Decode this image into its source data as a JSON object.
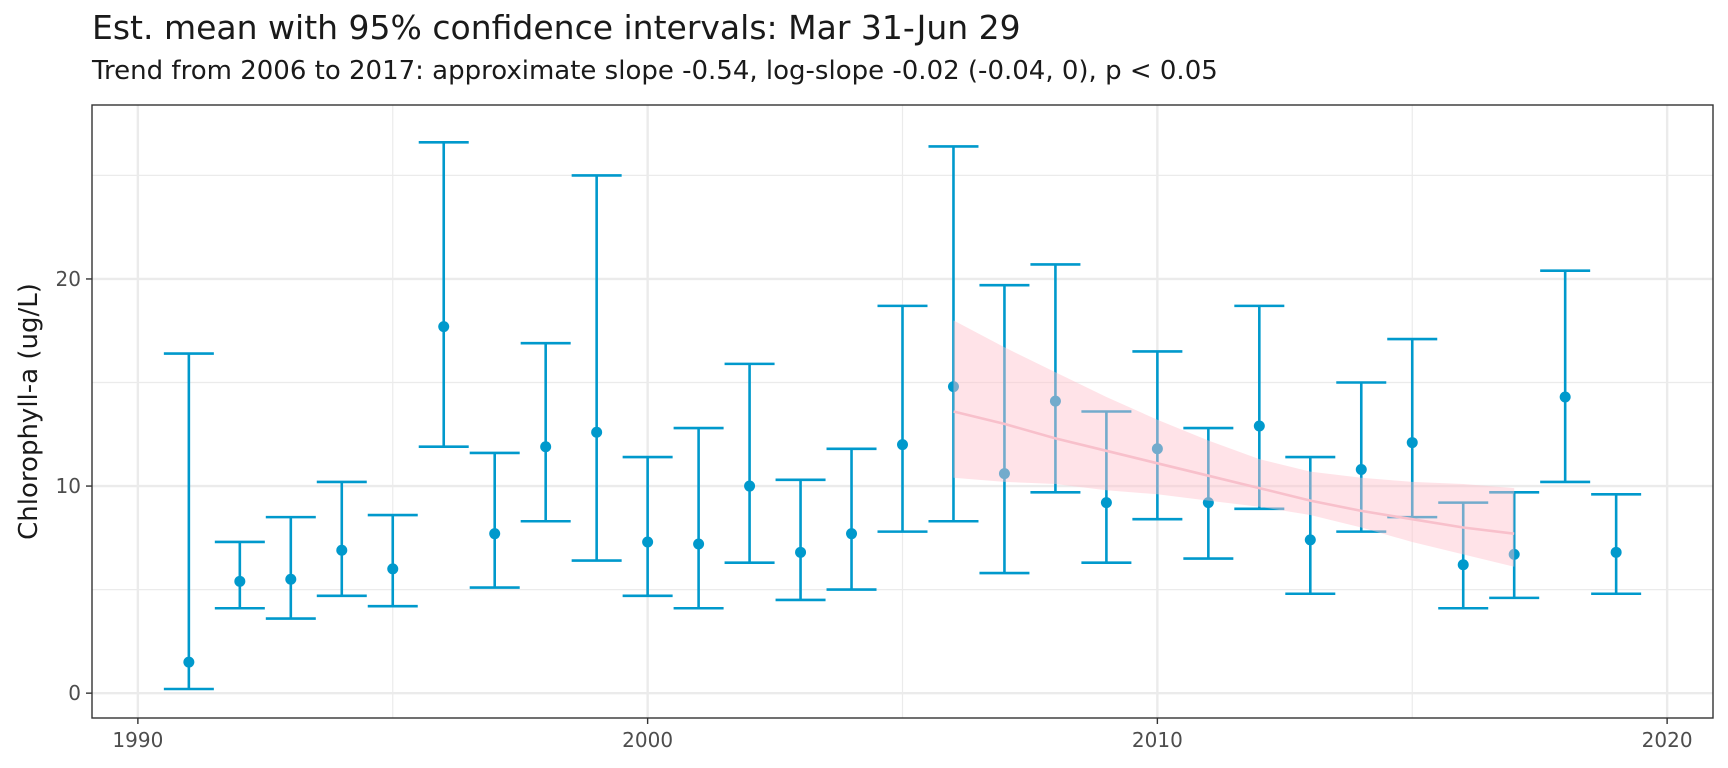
{
  "chart_data": {
    "type": "errorbar",
    "title": "Est. mean with 95% confidence intervals: Mar 31-Jun 29",
    "subtitle": "Trend from 2006 to 2017: approximate slope -0.54, log-slope -0.02 (-0.04, 0), p < 0.05",
    "xlabel": "",
    "ylabel": "Chlorophyll-a (ug/L)",
    "xlim": [
      1989.1,
      2020.9
    ],
    "ylim": [
      -1.2,
      28.4
    ],
    "x_ticks": [
      1990,
      2000,
      2010,
      2020
    ],
    "y_ticks": [
      0,
      10,
      20
    ],
    "grid": true,
    "legend": "none",
    "colors": {
      "points": "#0099CC",
      "trend_line": "#F8C0CB",
      "trend_band": "#FFDDE3",
      "grid": "#EBEBEB"
    },
    "series": [
      {
        "x": [
          1991,
          1992,
          1993,
          1994,
          1995,
          1996,
          1997,
          1998,
          1999,
          2000,
          2001,
          2002,
          2003,
          2004,
          2005,
          2006,
          2007,
          2008,
          2009,
          2010,
          2011,
          2012,
          2013,
          2014,
          2015,
          2016,
          2017,
          2018,
          2019
        ],
        "mean": [
          1.5,
          5.4,
          5.5,
          6.9,
          6.0,
          17.7,
          7.7,
          11.9,
          12.6,
          7.3,
          7.2,
          10.0,
          6.8,
          7.7,
          12.0,
          14.8,
          10.6,
          14.1,
          9.2,
          11.8,
          9.2,
          12.9,
          7.4,
          10.8,
          12.1,
          6.2,
          6.7,
          14.3,
          6.8
        ],
        "lower": [
          0.2,
          4.1,
          3.6,
          4.7,
          4.2,
          11.9,
          5.1,
          8.3,
          6.4,
          4.7,
          4.1,
          6.3,
          4.5,
          5.0,
          7.8,
          8.3,
          5.8,
          9.7,
          6.3,
          8.4,
          6.5,
          8.9,
          4.8,
          7.8,
          8.5,
          4.1,
          4.6,
          10.2,
          4.8
        ],
        "upper": [
          16.4,
          7.3,
          8.5,
          10.2,
          8.6,
          26.6,
          11.6,
          16.9,
          25.0,
          11.4,
          12.8,
          15.9,
          10.3,
          11.8,
          18.7,
          26.4,
          19.7,
          20.7,
          13.6,
          16.5,
          12.8,
          18.7,
          11.4,
          15.0,
          17.1,
          9.2,
          9.7,
          20.4,
          9.6
        ]
      }
    ],
    "trend": {
      "x": [
        2006,
        2007,
        2008,
        2009,
        2010,
        2011,
        2012,
        2013,
        2014,
        2015,
        2016,
        2017
      ],
      "y": [
        13.6,
        13.0,
        12.3,
        11.7,
        11.1,
        10.5,
        9.9,
        9.3,
        8.8,
        8.4,
        8.0,
        7.7
      ],
      "lower": [
        10.4,
        10.2,
        10.1,
        9.8,
        9.6,
        9.3,
        9.0,
        8.6,
        8.0,
        7.3,
        6.7,
        6.1
      ],
      "upper": [
        18.0,
        16.7,
        15.5,
        14.3,
        13.2,
        12.2,
        11.3,
        10.7,
        10.4,
        10.2,
        10.1,
        9.9
      ]
    }
  }
}
